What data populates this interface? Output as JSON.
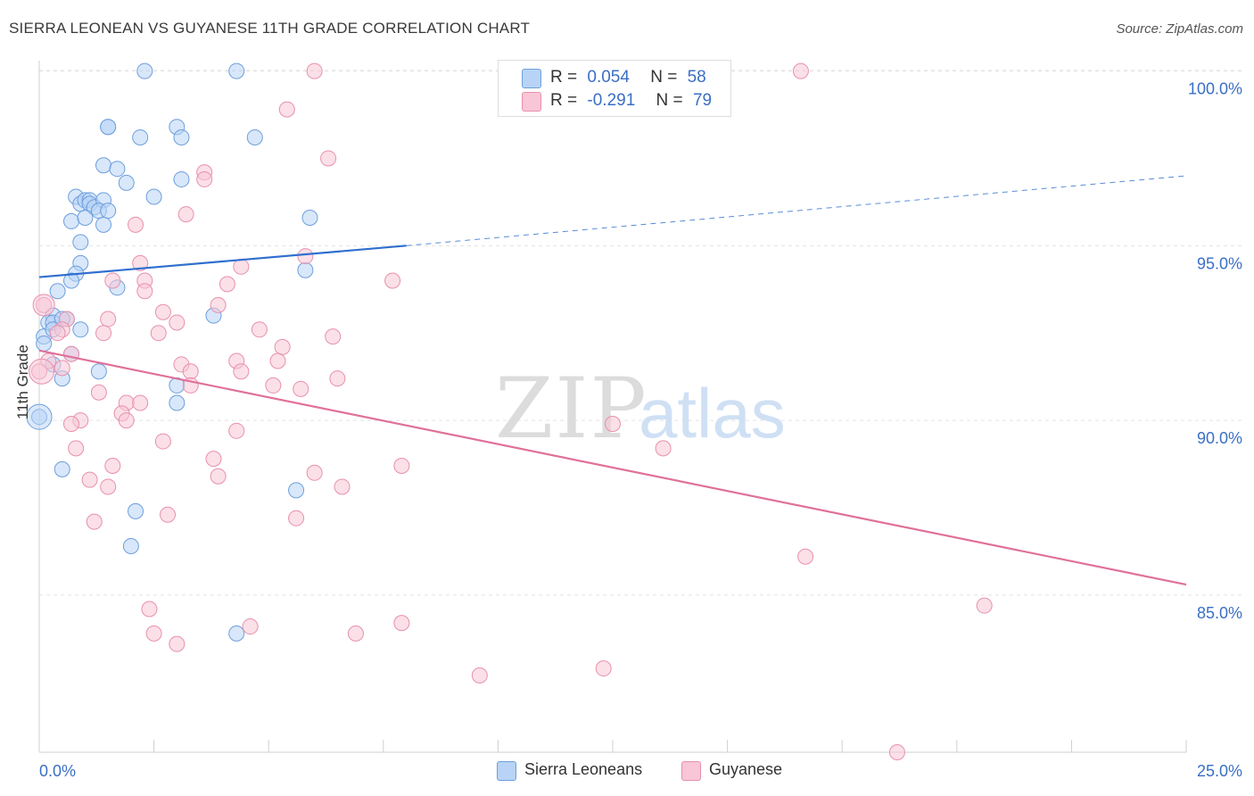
{
  "title": "SIERRA LEONEAN VS GUYANESE 11TH GRADE CORRELATION CHART",
  "source": "Source: ZipAtlas.com",
  "watermark": {
    "zip": "ZIP",
    "atlas": "atlas"
  },
  "colors": {
    "blue_fill": "#b8d3f5",
    "blue_stroke": "#6e9fdc",
    "blue_line": "#2f6fcf",
    "pink_fill": "#f8c6d6",
    "pink_stroke": "#e890ad",
    "pink_line": "#e0709a",
    "axis_label": "#3a6fc4",
    "grid": "#e2e2e2"
  },
  "legend_top": {
    "rows": [
      {
        "r_label": "R =",
        "r_value": "0.054",
        "n_label": "N =",
        "n_value": "58",
        "color": "blue"
      },
      {
        "r_label": "R =",
        "r_value": "-0.291",
        "n_label": "N =",
        "n_value": "79",
        "color": "pink"
      }
    ]
  },
  "legend_bottom": [
    {
      "label": "Sierra Leoneans",
      "color": "blue"
    },
    {
      "label": "Guyanese",
      "color": "pink"
    }
  ],
  "chart_data": {
    "type": "scatter",
    "title": "SIERRA LEONEAN VS GUYANESE 11TH GRADE CORRELATION CHART",
    "xlabel": "",
    "ylabel": "11th Grade",
    "xlim": [
      0,
      25
    ],
    "ylim": [
      80.5,
      100.5
    ],
    "x_tick_labels": [
      {
        "value": 0,
        "label": "0.0%"
      },
      {
        "value": 25,
        "label": "25.0%"
      }
    ],
    "y_ticks": [
      {
        "value": 85,
        "label": "85.0%"
      },
      {
        "value": 90,
        "label": "90.0%"
      },
      {
        "value": 95,
        "label": "95.0%"
      },
      {
        "value": 100,
        "label": "100.0%"
      }
    ],
    "grid": true,
    "legend_position": "top-center",
    "series": [
      {
        "name": "Sierra Leoneans",
        "color": "blue",
        "r": 0.054,
        "n": 58,
        "trend": {
          "x0": 0,
          "y0": 94.1,
          "x1": 8,
          "y1": 95.0,
          "dashed_to_x": 25,
          "dashed_to_y": 97.0
        },
        "points": [
          [
            2.3,
            100.0
          ],
          [
            4.3,
            100.0
          ],
          [
            1.5,
            98.4
          ],
          [
            1.5,
            98.4
          ],
          [
            3.0,
            98.4
          ],
          [
            2.2,
            98.1
          ],
          [
            3.1,
            98.1
          ],
          [
            4.7,
            98.1
          ],
          [
            1.4,
            97.3
          ],
          [
            1.7,
            97.2
          ],
          [
            1.9,
            96.8
          ],
          [
            3.1,
            96.9
          ],
          [
            0.8,
            96.4
          ],
          [
            0.9,
            96.2
          ],
          [
            1.0,
            96.3
          ],
          [
            1.1,
            96.3
          ],
          [
            1.1,
            96.2
          ],
          [
            1.2,
            96.1
          ],
          [
            1.4,
            96.3
          ],
          [
            2.5,
            96.4
          ],
          [
            1.3,
            96.0
          ],
          [
            1.5,
            96.0
          ],
          [
            0.7,
            95.7
          ],
          [
            1.0,
            95.8
          ],
          [
            1.4,
            95.6
          ],
          [
            5.9,
            95.8
          ],
          [
            0.9,
            95.1
          ],
          [
            0.9,
            94.5
          ],
          [
            0.8,
            94.2
          ],
          [
            0.7,
            94.0
          ],
          [
            5.8,
            94.3
          ],
          [
            1.7,
            93.8
          ],
          [
            0.4,
            93.7
          ],
          [
            0.3,
            93.0
          ],
          [
            0.6,
            92.9
          ],
          [
            0.2,
            92.8
          ],
          [
            0.3,
            92.8
          ],
          [
            0.5,
            92.9
          ],
          [
            3.8,
            93.0
          ],
          [
            0.1,
            92.4
          ],
          [
            0.3,
            92.6
          ],
          [
            0.9,
            92.6
          ],
          [
            0.1,
            92.2
          ],
          [
            0.7,
            91.9
          ],
          [
            0.3,
            91.6
          ],
          [
            1.3,
            91.4
          ],
          [
            0.5,
            91.2
          ],
          [
            3.0,
            91.0
          ],
          [
            3.0,
            90.5
          ],
          [
            0.0,
            90.1
          ],
          [
            0.5,
            88.6
          ],
          [
            5.6,
            88.0
          ],
          [
            2.1,
            87.4
          ],
          [
            2.0,
            86.4
          ],
          [
            4.3,
            83.9
          ]
        ]
      },
      {
        "name": "Guyanese",
        "color": "pink",
        "r": -0.291,
        "n": 79,
        "trend": {
          "x0": 0,
          "y0": 92.0,
          "x1": 25,
          "y1": 85.3
        },
        "points": [
          [
            6.0,
            100.0
          ],
          [
            16.6,
            100.0
          ],
          [
            5.4,
            98.9
          ],
          [
            6.3,
            97.5
          ],
          [
            3.6,
            97.1
          ],
          [
            3.6,
            96.9
          ],
          [
            2.1,
            95.6
          ],
          [
            3.2,
            95.9
          ],
          [
            2.2,
            94.5
          ],
          [
            4.4,
            94.4
          ],
          [
            5.8,
            94.7
          ],
          [
            1.6,
            94.0
          ],
          [
            2.3,
            94.0
          ],
          [
            4.1,
            93.9
          ],
          [
            7.7,
            94.0
          ],
          [
            2.3,
            93.7
          ],
          [
            0.1,
            93.3
          ],
          [
            3.9,
            93.3
          ],
          [
            2.7,
            93.1
          ],
          [
            1.5,
            92.9
          ],
          [
            0.6,
            92.9
          ],
          [
            0.5,
            92.6
          ],
          [
            3.0,
            92.8
          ],
          [
            1.4,
            92.5
          ],
          [
            0.4,
            92.5
          ],
          [
            2.6,
            92.5
          ],
          [
            4.8,
            92.6
          ],
          [
            6.4,
            92.4
          ],
          [
            5.3,
            92.1
          ],
          [
            0.7,
            91.9
          ],
          [
            0.2,
            91.7
          ],
          [
            3.1,
            91.6
          ],
          [
            4.3,
            91.7
          ],
          [
            5.2,
            91.7
          ],
          [
            0.5,
            91.5
          ],
          [
            4.4,
            91.4
          ],
          [
            3.3,
            91.4
          ],
          [
            3.3,
            91.0
          ],
          [
            5.1,
            91.0
          ],
          [
            6.5,
            91.2
          ],
          [
            5.7,
            90.9
          ],
          [
            0.0,
            91.4
          ],
          [
            1.3,
            90.8
          ],
          [
            1.9,
            90.5
          ],
          [
            2.2,
            90.5
          ],
          [
            1.8,
            90.2
          ],
          [
            1.9,
            90.0
          ],
          [
            0.9,
            90.0
          ],
          [
            0.7,
            89.9
          ],
          [
            4.3,
            89.7
          ],
          [
            12.5,
            89.9
          ],
          [
            2.7,
            89.4
          ],
          [
            0.8,
            89.2
          ],
          [
            3.8,
            88.9
          ],
          [
            1.6,
            88.7
          ],
          [
            7.9,
            88.7
          ],
          [
            1.1,
            88.3
          ],
          [
            3.9,
            88.4
          ],
          [
            6.0,
            88.5
          ],
          [
            1.5,
            88.1
          ],
          [
            6.6,
            88.1
          ],
          [
            2.8,
            87.3
          ],
          [
            5.6,
            87.2
          ],
          [
            1.2,
            87.1
          ],
          [
            16.7,
            86.1
          ],
          [
            2.4,
            84.6
          ],
          [
            20.6,
            84.7
          ],
          [
            4.6,
            84.1
          ],
          [
            7.9,
            84.2
          ],
          [
            2.5,
            83.9
          ],
          [
            6.9,
            83.9
          ],
          [
            3.0,
            83.6
          ],
          [
            12.3,
            82.9
          ],
          [
            9.6,
            82.7
          ],
          [
            18.7,
            80.5
          ],
          [
            13.6,
            89.2
          ]
        ]
      }
    ]
  },
  "y_axis_title": "11th Grade"
}
